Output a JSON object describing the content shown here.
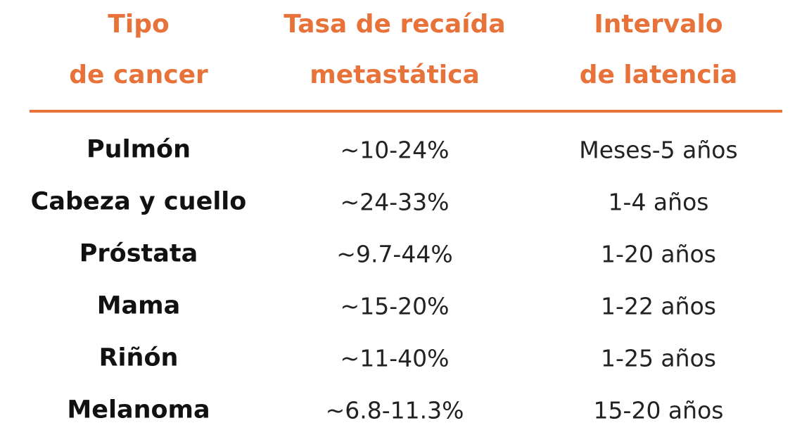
{
  "table": {
    "headers": [
      [
        "Tipo",
        "de cancer"
      ],
      [
        "Tasa de recaída",
        "metastática"
      ],
      [
        "Intervalo",
        "de latencia"
      ]
    ],
    "rows": [
      [
        "Pulmón",
        "~10-24%",
        "Meses-5 años"
      ],
      [
        "Cabeza y cuello",
        "~24-33%",
        "1-4 años"
      ],
      [
        "Próstata",
        "~9.7-44%",
        "1-20 años"
      ],
      [
        "Mama",
        "~15-20%",
        "1-22 años"
      ],
      [
        "Riñón",
        "~11-40%",
        "1-25 años"
      ],
      [
        "Melanoma",
        "~6.8-11.3%",
        "15-20 años"
      ]
    ]
  }
}
